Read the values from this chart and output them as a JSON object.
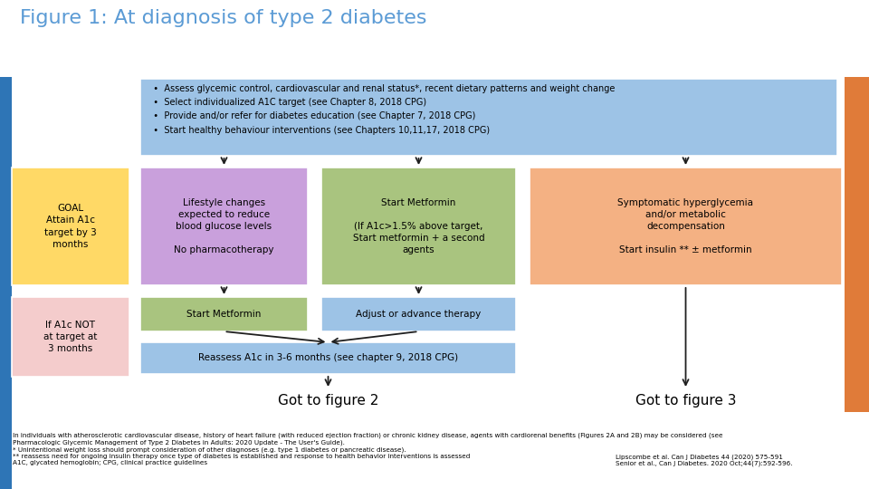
{
  "title": "Figure 1: At diagnosis of type 2 diabetes",
  "title_color": "#5B9BD5",
  "title_fontsize": 16,
  "bg_color": "#FFFFFF",
  "right_bar_color": "#E07B39",
  "left_bar_color": "#2E75B6",
  "top_box": {
    "bullets": "  •  Assess glycemic control, cardiovascular and renal status*, recent dietary patterns and weight change\n  •  Select individualized A1C target (see Chapter 8, 2018 CPG)\n  •  Provide and/or refer for diabetes education (see Chapter 7, 2018 CPG)\n  •  Start healthy behaviour interventions (see Chapters 10,11,17, 2018 CPG)",
    "bg": "#9DC3E6",
    "fontsize": 7.0
  },
  "goal_box1": {
    "text": "GOAL\nAttain A1c\ntarget by 3\nmonths",
    "bg": "#FFD966",
    "fontsize": 7.5
  },
  "goal_box2": {
    "text": "If A1c NOT\nat target at\n3 months",
    "bg": "#F4CCCC",
    "fontsize": 7.5
  },
  "lifestyle_box": {
    "text": "Lifestyle changes\nexpected to reduce\nblood glucose levels\n\nNo pharmacotherapy",
    "bg": "#C9A0DC",
    "fontsize": 7.5
  },
  "metformin_box": {
    "text": "Start Metformin\n\n(If A1c>1.5% above target,\nStart metformin + a second\nagents",
    "bg": "#A9C47F",
    "fontsize": 7.5
  },
  "symptomatic_box": {
    "text": "Symptomatic hyperglycemia\nand/or metabolic\ndecompensation\n\nStart insulin ** ± metformin",
    "bg": "#F4B183",
    "fontsize": 7.5
  },
  "start_metformin_box": {
    "text": "Start Metformin",
    "bg": "#A9C47F",
    "fontsize": 7.5
  },
  "adjust_box": {
    "text": "Adjust or advance therapy",
    "bg": "#9DC3E6",
    "fontsize": 7.5
  },
  "reassess_box": {
    "text": "Reassess A1c in 3-6 months (see chapter 9, 2018 CPG)",
    "bg": "#9DC3E6",
    "fontsize": 7.5
  },
  "goto2_text": "Got to figure 2",
  "goto3_text": "Got to figure 3",
  "goto_fontsize": 11,
  "footnote1": "In individuals with atherosclerotic cardiovascular disease, history of heart failure (with reduced ejection fraction) or chronic kidney disease, agents with cardiorenal benefits (Figures 2A and 2B) may be considered (see\nPharmacologic Glycemic Management of Type 2 Diabetes in Adults: 2020 Update - The User's Guide).",
  "footnote2": "* Unintentional weight loss should prompt consideration of other diagnoses (e.g. type 1 diabetes or pancreatic disease).",
  "footnote3": "** reassess need for ongoing insulin therapy once type of diabetes is established and response to health behavior interventions is assessed\nA1C, glycated hemoglobin; CPG, clinical practice guidelines",
  "footnote4": "Lipscombe et al. Can J Diabetes 44 (2020) 575-591\nSenior et al., Can J Diabetes. 2020 Oct;44(7):592-596.",
  "footnote_fontsize": 5.2,
  "arrow_color": "#1F1F1F"
}
